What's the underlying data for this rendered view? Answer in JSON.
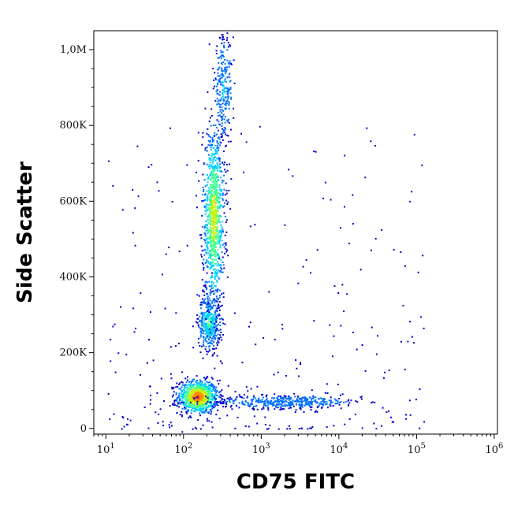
{
  "chart_data": {
    "type": "scatter",
    "subtype": "flow-cytometry-density-dot-plot",
    "xlabel": "CD75 FITC",
    "ylabel": "Side Scatter",
    "x_scale": "log",
    "xlim": [
      7,
      1100000
    ],
    "y_scale": "linear",
    "ylim": [
      -15000,
      1050000
    ],
    "x_ticks": [
      {
        "value": 10,
        "base": "10",
        "exp": "1"
      },
      {
        "value": 100,
        "base": "10",
        "exp": "2"
      },
      {
        "value": 1000,
        "base": "10",
        "exp": "3"
      },
      {
        "value": 10000,
        "base": "10",
        "exp": "4"
      },
      {
        "value": 100000,
        "base": "10",
        "exp": "5"
      },
      {
        "value": 1000000,
        "base": "10",
        "exp": "6"
      }
    ],
    "y_ticks": [
      {
        "value": 0,
        "label": "0"
      },
      {
        "value": 200000,
        "label": "200K"
      },
      {
        "value": 400000,
        "label": "400K"
      },
      {
        "value": 600000,
        "label": "600K"
      },
      {
        "value": 800000,
        "label": "800K"
      },
      {
        "value": 1000000,
        "label": "1,0M"
      }
    ],
    "density_colors": [
      "#0000d0",
      "#0070ff",
      "#00d0ff",
      "#40ff90",
      "#c8f000",
      "#ff9000",
      "#ff1500"
    ],
    "populations": [
      {
        "x_center": 150,
        "y_center": 85000,
        "x_log_sd": 0.13,
        "y_sd": 22000,
        "relative_density": 1.0
      },
      {
        "x_center": 2000,
        "y_center": 72000,
        "x_log_sd": 0.5,
        "y_sd": 9000,
        "relative_density": 0.25
      },
      {
        "x_center": 210,
        "y_center": 280000,
        "x_log_sd": 0.07,
        "y_sd": 35000,
        "relative_density": 0.5
      },
      {
        "x_center": 240,
        "y_center": 560000,
        "x_log_sd": 0.07,
        "y_sd": 120000,
        "relative_density": 0.75
      },
      {
        "x_center": 320,
        "y_center": 900000,
        "x_log_sd": 0.06,
        "y_sd": 70000,
        "relative_density": 0.3
      }
    ],
    "grid": false,
    "legend": "none"
  }
}
